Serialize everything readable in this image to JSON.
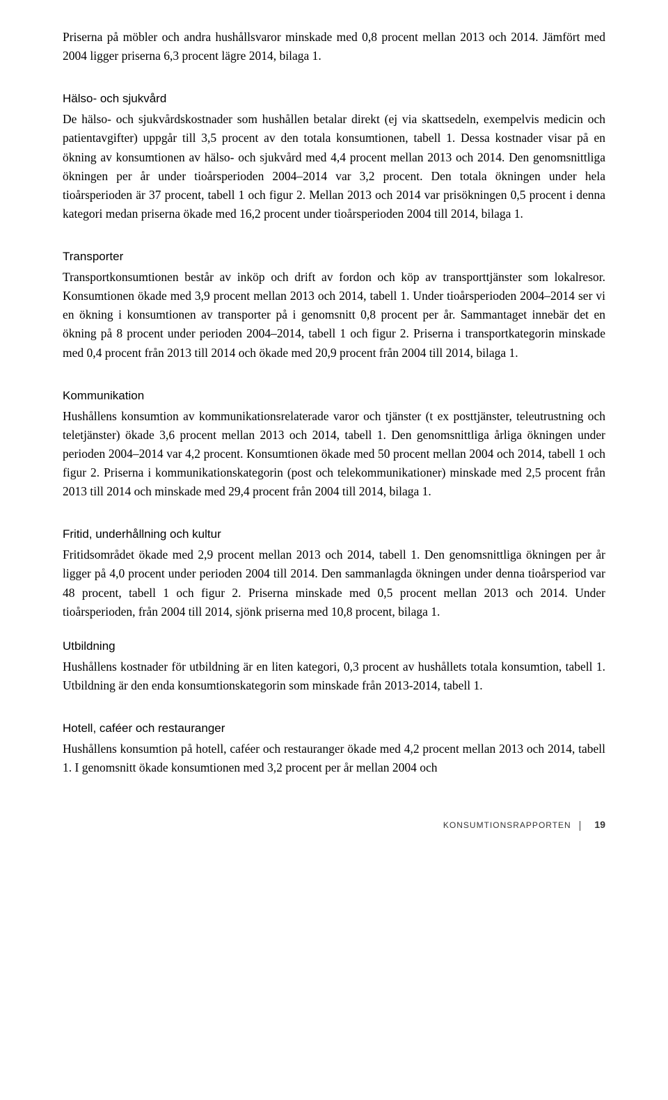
{
  "intro": {
    "p1": "Priserna på möbler och andra hushållsvaror minskade med 0,8 procent mellan 2013 och 2014. Jämfört med 2004 ligger priserna 6,3 procent lägre 2014, bilaga 1."
  },
  "sections": {
    "halso": {
      "heading": "Hälso- och sjukvård",
      "p1": "De hälso- och sjukvårdskostnader som hushållen betalar direkt (ej via skattsedeln, exempelvis medicin och patientavgifter) uppgår till 3,5 procent av den totala konsumtionen, tabell 1. Dessa kostnader visar på en ökning av konsumtionen av hälso- och sjukvård med 4,4 procent mellan 2013 och 2014. Den genomsnittliga ökningen per år under tioårsperioden 2004–2014 var 3,2 procent. Den totala ökningen under hela tioårsperioden är 37 procent, tabell 1 och figur 2. Mellan 2013 och 2014 var prisökningen 0,5 procent i denna kategori medan priserna ökade med 16,2 procent under tioårsperioden 2004 till 2014, bilaga 1."
    },
    "transporter": {
      "heading": "Transporter",
      "p1": "Transportkonsumtionen består av inköp och drift av fordon och köp av transporttjänster som lokalresor. Konsumtionen ökade med 3,9 procent mellan 2013 och 2014, tabell 1. Under tioårsperioden 2004–2014 ser vi en ökning i konsumtionen av transporter på i genomsnitt 0,8 procent per år. Sammantaget innebär det en ökning på 8 procent under perioden 2004–2014, tabell 1 och figur 2. Priserna i transportkategorin minskade med 0,4 procent från 2013 till 2014 och ökade med 20,9 procent från 2004 till 2014, bilaga 1."
    },
    "kommunikation": {
      "heading": "Kommunikation",
      "p1": "Hushållens konsumtion av kommunikationsrelaterade varor och tjänster (t ex posttjänster, teleutrustning och teletjänster) ökade 3,6 procent mellan 2013 och 2014, tabell 1. Den genomsnittliga årliga ökningen under perioden 2004–2014 var 4,2 procent. Konsumtionen ökade med 50 procent mellan 2004 och 2014, tabell 1 och figur 2. Priserna i kommunikationskategorin (post och telekommunikationer) minskade med 2,5 procent från 2013 till 2014 och minskade med 29,4 procent från 2004 till 2014, bilaga 1."
    },
    "fritid": {
      "heading": "Fritid, underhållning och kultur",
      "p1": "Fritidsområdet ökade med 2,9 procent mellan 2013 och 2014, tabell 1. Den genomsnittliga ökningen per år ligger på 4,0 procent under perioden 2004 till 2014. Den sammanlagda ökningen under denna tioårsperiod var 48 procent, tabell 1 och figur 2. Priserna minskade med 0,5 procent mellan 2013 och 2014. Under tioårsperioden, från 2004 till 2014, sjönk priserna med 10,8 procent, bilaga 1."
    },
    "utbildning": {
      "heading": "Utbildning",
      "p1": "Hushållens kostnader för utbildning är en liten kategori, 0,3 procent av hushållets totala konsumtion, tabell 1. Utbildning är den enda konsumtionskategorin som minskade från 2013-2014, tabell 1."
    },
    "hotell": {
      "heading": "Hotell, caféer och restauranger",
      "p1": "Hushållens konsumtion på hotell, caféer och restauranger ökade med 4,2 procent mellan 2013 och 2014, tabell 1. I genomsnitt ökade konsumtionen med 3,2 procent per år mellan 2004 och"
    }
  },
  "footer": {
    "label": "KONSUMTIONSRAPPORTEN",
    "page": "19"
  }
}
